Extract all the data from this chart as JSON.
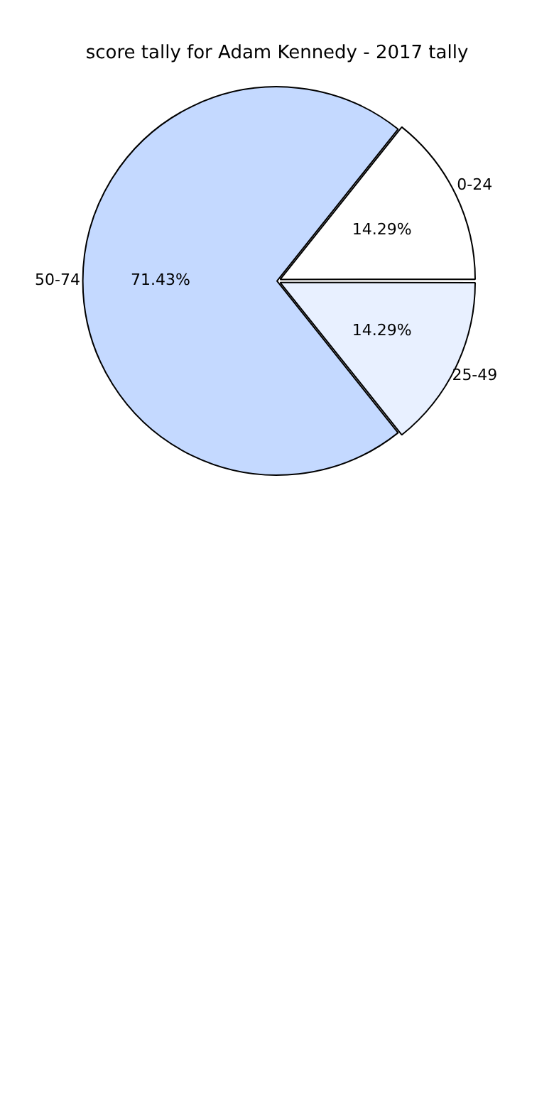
{
  "chart_data": {
    "type": "pie",
    "title": "score tally for Adam Kennedy - 2017 tally",
    "categories": [
      "0-24",
      "25-49",
      "50-74"
    ],
    "values": [
      14.29,
      14.29,
      71.43
    ],
    "value_labels": [
      "14.29%",
      "14.29%",
      "71.43%"
    ],
    "colors": [
      "#ffffff",
      "#e8f0ff",
      "#c4d9ff"
    ],
    "legend": false
  }
}
